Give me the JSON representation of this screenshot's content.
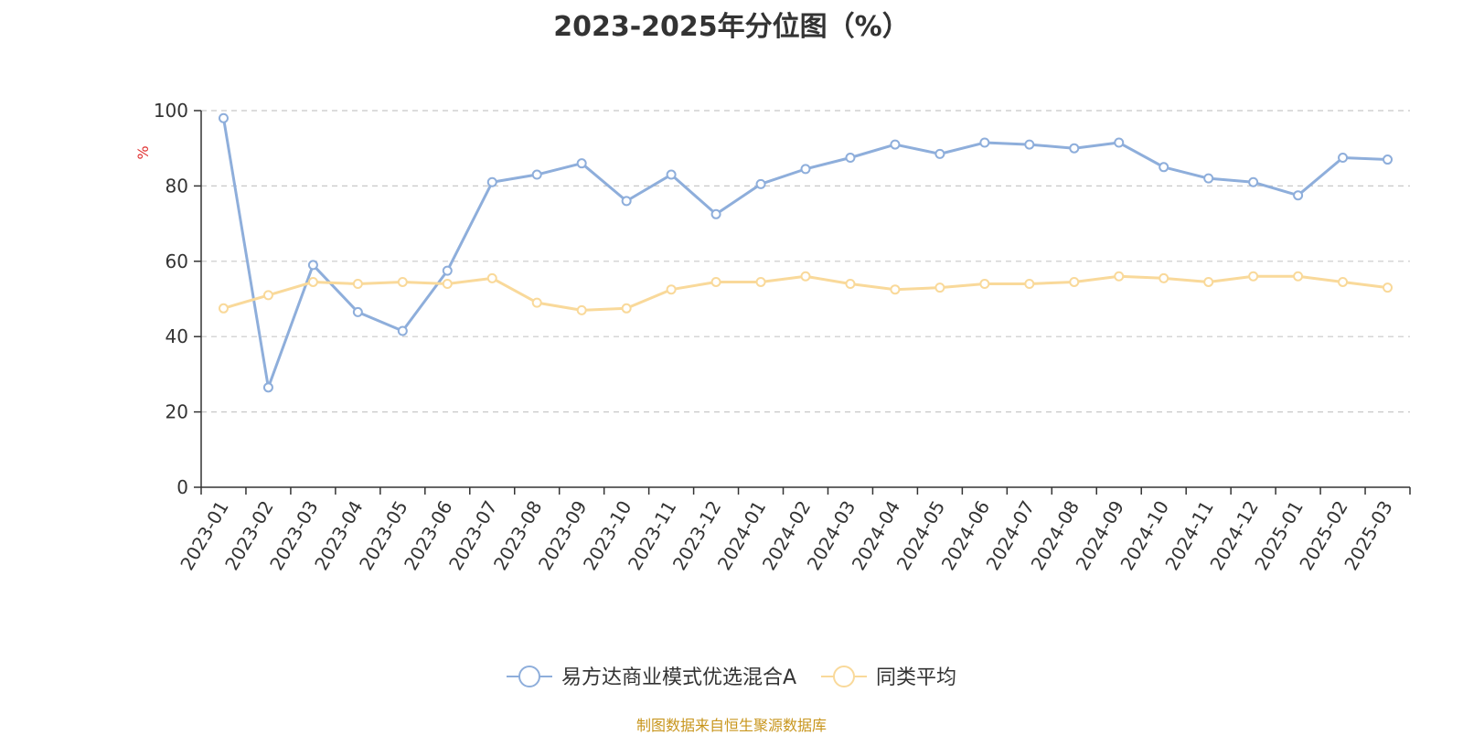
{
  "chart_data": {
    "type": "line",
    "title": "2023-2025年分位图（%）",
    "ylabel": "%",
    "ylim": [
      0,
      100
    ],
    "yticks": [
      0,
      20,
      40,
      60,
      80,
      100
    ],
    "grid": true,
    "legend_position": "bottom",
    "categories": [
      "2023-01",
      "2023-02",
      "2023-03",
      "2023-04",
      "2023-05",
      "2023-06",
      "2023-07",
      "2023-08",
      "2023-09",
      "2023-10",
      "2023-11",
      "2023-12",
      "2024-01",
      "2024-02",
      "2024-03",
      "2024-04",
      "2024-05",
      "2024-06",
      "2024-07",
      "2024-08",
      "2024-09",
      "2024-10",
      "2024-11",
      "2024-12",
      "2025-01",
      "2025-02",
      "2025-03"
    ],
    "series": [
      {
        "name": "易方达商业模式优选混合A",
        "color": "#8eaedb",
        "values": [
          98,
          26.5,
          59,
          46.5,
          41.5,
          57.5,
          81,
          83,
          86,
          76,
          83,
          72.5,
          80.5,
          84.5,
          87.5,
          91,
          88.5,
          91.5,
          91,
          90,
          91.5,
          85,
          82,
          81,
          77.5,
          87.5,
          87
        ]
      },
      {
        "name": "同类平均",
        "color": "#f9d99a",
        "values": [
          47.5,
          51,
          54.5,
          54,
          54.5,
          54,
          55.5,
          49,
          47,
          47.5,
          52.5,
          54.5,
          54.5,
          56,
          54,
          52.5,
          53,
          54,
          54,
          54.5,
          56,
          55.5,
          54.5,
          56,
          56,
          54.5,
          53
        ]
      }
    ]
  },
  "source_note": "制图数据来自恒生聚源数据库",
  "colors": {
    "axis": "#333333",
    "grid": "#c8c8c8",
    "ylabel": "#e03030",
    "source": "#c8961e"
  }
}
